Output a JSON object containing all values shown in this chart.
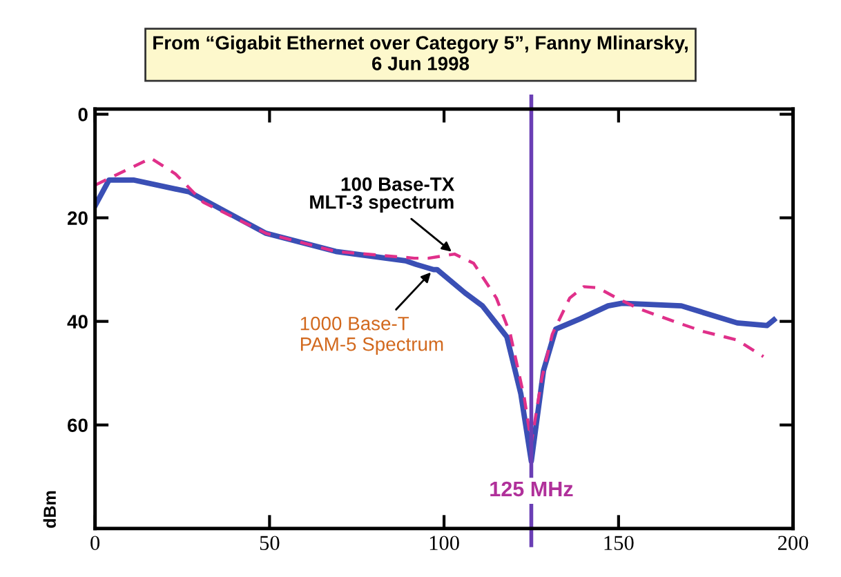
{
  "chart_data": {
    "type": "line",
    "title": "From “Gigabit Ethernet over Category 5”, Fanny Mlinarsky,\n6 Jun 1998",
    "ylabel": "dBm",
    "xlim": [
      0,
      200
    ],
    "xticks": [
      0,
      50,
      100,
      150,
      200
    ],
    "ylim": [
      80,
      -1
    ],
    "yticks": [
      0,
      20,
      40,
      60
    ],
    "grid": false,
    "legend": false,
    "series": [
      {
        "color": "#3a4fb5",
        "line_style": "solid",
        "x": [
          0,
          4,
          11,
          27,
          49,
          69,
          89,
          92,
          97,
          98,
          106,
          111,
          118,
          122,
          125,
          128.5,
          132,
          139,
          147,
          151,
          168,
          184,
          192.5,
          194.5
        ],
        "values": [
          17.7,
          12.7,
          12.7,
          15,
          23,
          26.5,
          28.3,
          29,
          30,
          30,
          34.5,
          37,
          43,
          54,
          67,
          49.5,
          41.5,
          39.5,
          37,
          36.5,
          37,
          40.3,
          40.8,
          39.7
        ]
      },
      {
        "color": "#e0308a",
        "line_style": "dashed",
        "x": [
          0,
          16,
          23,
          31,
          49,
          69,
          91.5,
          95.5,
          103,
          108.5,
          115,
          119,
          123,
          125,
          128,
          131,
          136,
          140,
          144,
          149.5,
          156,
          163,
          168,
          174.5,
          184,
          191.5
        ],
        "values": [
          13.7,
          8.5,
          11.5,
          17,
          23,
          26.5,
          27.8,
          27.8,
          27,
          28.8,
          35.5,
          42.5,
          54.8,
          63.5,
          51,
          42.5,
          35.5,
          33.3,
          33.5,
          35.5,
          37.6,
          39.3,
          40.5,
          42,
          43.6,
          46.8
        ]
      }
    ],
    "ref_lines": [
      {
        "axis": "x",
        "value": 125,
        "label": "125 MHz",
        "color": "#6a3fb5"
      }
    ],
    "annotations": [
      {
        "text": "100 Base-TX\nMLT-3 spectrum",
        "x": 103,
        "y": 27
      },
      {
        "text": "1000 Base-T\nPAM-5 Spectrum",
        "x": 97,
        "y": 30
      }
    ]
  }
}
